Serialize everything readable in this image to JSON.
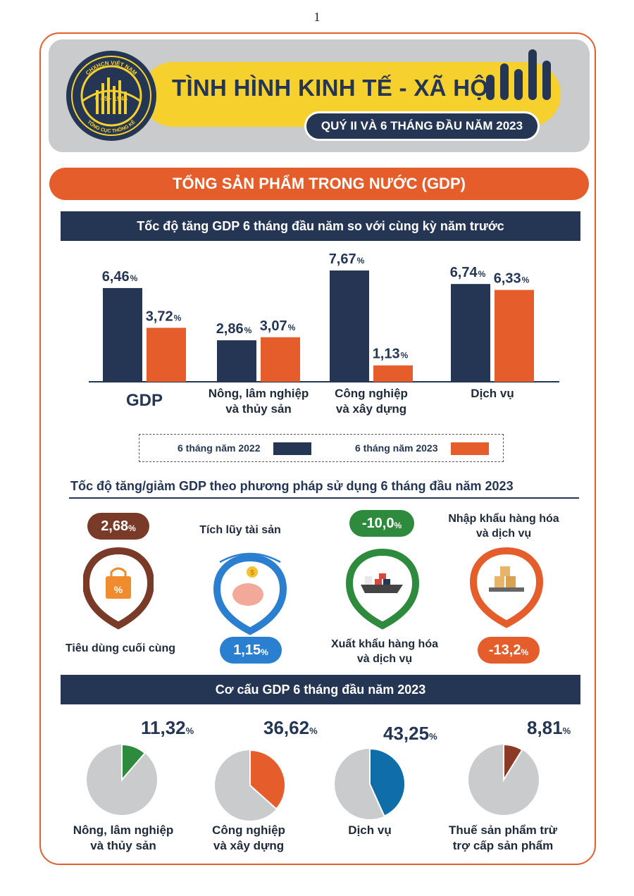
{
  "page_number": "1",
  "header": {
    "title": "TÌNH HÌNH KINH TẾ - XÃ HỘI",
    "subtitle": "QUÝ II VÀ 6 THÁNG ĐẦU NĂM 2023",
    "logo_text_top": "CHXHCN VIỆT NAM",
    "logo_text_date": "6 - 5 - 1946",
    "logo_text_bottom": "TỔNG CỤC THỐNG KÊ"
  },
  "section_title": "TỔNG SẢN PHẨM TRONG NƯỚC (GDP)",
  "colors": {
    "navy": "#253654",
    "orange": "#e55d2b",
    "yellow": "#f6d12d",
    "brown": "#7a3a28",
    "blue": "#2b7fd0",
    "green": "#2e8b3e",
    "pie_grey": "#c9cbcd",
    "pie_green": "#2e8b3e",
    "pie_orange": "#e55d2b",
    "pie_blue": "#0f6ea8",
    "pie_brown": "#8b3a26"
  },
  "chart_data": [
    {
      "type": "bar",
      "title": "Tốc độ tăng GDP 6 tháng đầu năm so với cùng kỳ năm trước",
      "categories": [
        "GDP",
        "Nông, lâm nghiệp\nvà thủy sản",
        "Công nghiệp\nvà xây dựng",
        "Dịch vụ"
      ],
      "series": [
        {
          "name": "6 tháng năm 2022",
          "values": [
            6.46,
            2.86,
            7.67,
            6.74
          ],
          "labels": [
            "6,46",
            "2,86",
            "7,67",
            "6,74"
          ],
          "color": "#253654"
        },
        {
          "name": "6 tháng năm 2023",
          "values": [
            3.72,
            3.07,
            1.13,
            6.33
          ],
          "labels": [
            "3,72",
            "3,07",
            "1,13",
            "6,33"
          ],
          "color": "#e55d2b"
        }
      ],
      "unit": "%",
      "ylim": [
        0,
        8
      ],
      "legend": "bottom"
    },
    {
      "type": "table",
      "title": "Tốc độ tăng/giảm GDP theo phương pháp sử dụng 6 tháng đầu năm 2023",
      "items": [
        {
          "label": "Tiêu dùng cuối cùng",
          "value": 2.68,
          "text": "2,68",
          "icon": "shopping-bag-icon",
          "color": "#7a3a28"
        },
        {
          "label": "Tích lũy tài sản",
          "value": 1.15,
          "text": "1,15",
          "icon": "piggy-bank-icon",
          "color": "#2b7fd0"
        },
        {
          "label": "Xuất khẩu hàng hóa\nvà dịch vụ",
          "value": -10.0,
          "text": "-10,0",
          "icon": "cargo-ship-icon",
          "color": "#2e8b3e"
        },
        {
          "label": "Nhập khẩu hàng hóa\nvà dịch vụ",
          "value": -13.2,
          "text": "-13,2",
          "icon": "warehouse-boxes-icon",
          "color": "#e55d2b"
        }
      ],
      "unit": "%"
    },
    {
      "type": "pie",
      "title": "Cơ cấu GDP 6 tháng đầu năm 2023",
      "slices": [
        {
          "label": "Nông, lâm nghiệp\nvà thủy sản",
          "value": 11.32,
          "text": "11,32",
          "color": "#2e8b3e"
        },
        {
          "label": "Công nghiệp\nvà xây dựng",
          "value": 36.62,
          "text": "36,62",
          "color": "#e55d2b"
        },
        {
          "label": "Dịch vụ",
          "value": 43.25,
          "text": "43,25",
          "color": "#0f6ea8"
        },
        {
          "label": "Thuế sản phẩm trừ\ntrợ cấp sản phẩm",
          "value": 8.81,
          "text": "8,81",
          "color": "#8b3a26"
        }
      ],
      "unit": "%"
    }
  ]
}
